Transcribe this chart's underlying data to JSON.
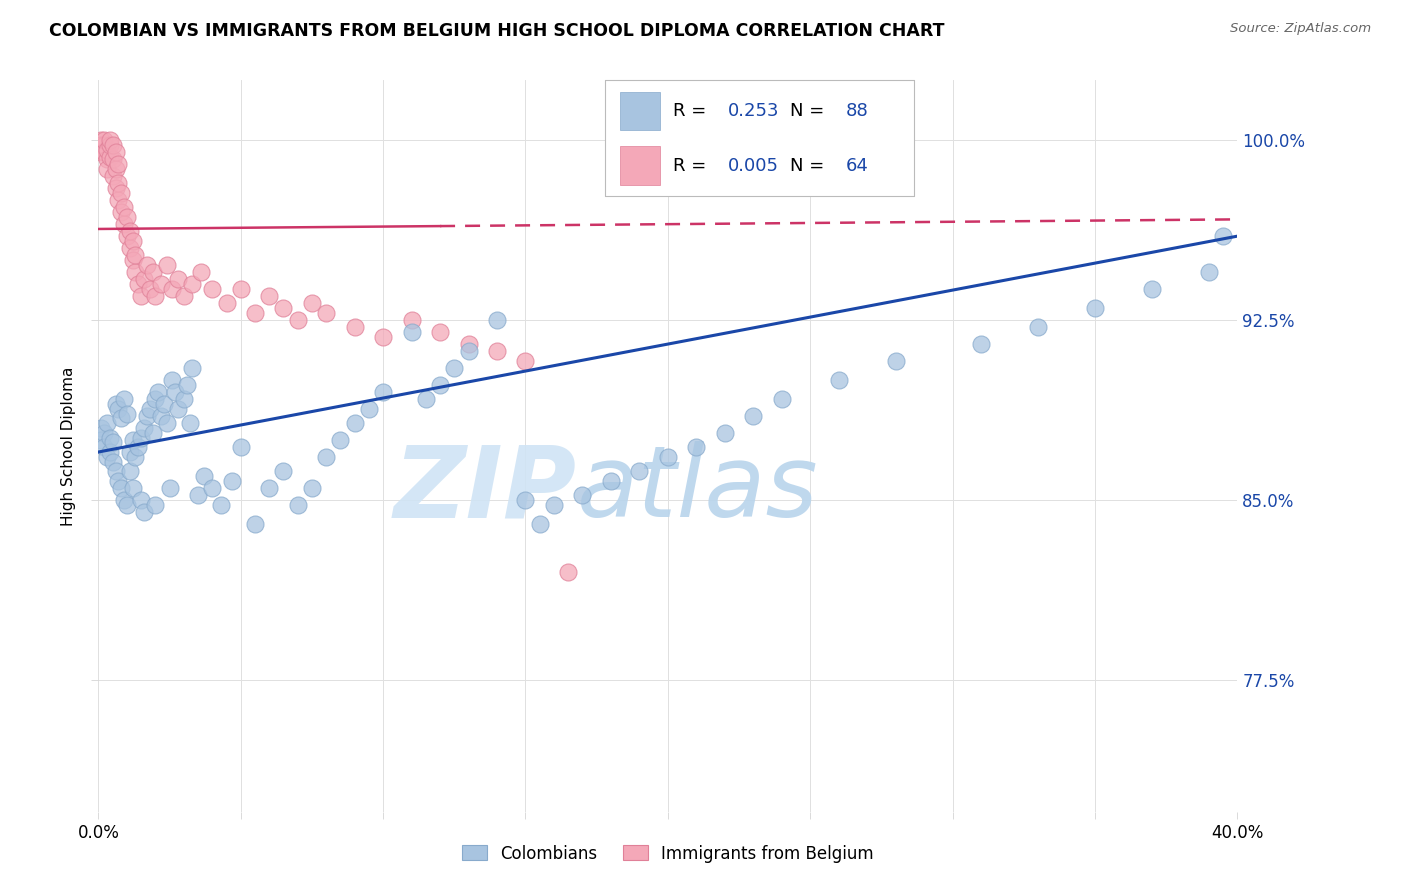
{
  "title": "COLOMBIAN VS IMMIGRANTS FROM BELGIUM HIGH SCHOOL DIPLOMA CORRELATION CHART",
  "source": "Source: ZipAtlas.com",
  "ylabel": "High School Diploma",
  "ytick_labels": [
    "77.5%",
    "85.0%",
    "92.5%",
    "100.0%"
  ],
  "ytick_values": [
    0.775,
    0.85,
    0.925,
    1.0
  ],
  "xmin": 0.0,
  "xmax": 0.4,
  "ymin": 0.72,
  "ymax": 1.025,
  "legend_R_blue": "0.253",
  "legend_N_blue": "88",
  "legend_R_pink": "0.005",
  "legend_N_pink": "64",
  "colombians_x": [
    0.001,
    0.001,
    0.002,
    0.002,
    0.003,
    0.003,
    0.004,
    0.004,
    0.005,
    0.005,
    0.006,
    0.006,
    0.007,
    0.007,
    0.008,
    0.008,
    0.009,
    0.009,
    0.01,
    0.01,
    0.011,
    0.011,
    0.012,
    0.012,
    0.013,
    0.014,
    0.015,
    0.015,
    0.016,
    0.016,
    0.017,
    0.018,
    0.019,
    0.02,
    0.02,
    0.021,
    0.022,
    0.023,
    0.024,
    0.025,
    0.026,
    0.027,
    0.028,
    0.03,
    0.031,
    0.032,
    0.033,
    0.035,
    0.037,
    0.04,
    0.043,
    0.047,
    0.05,
    0.055,
    0.06,
    0.065,
    0.07,
    0.075,
    0.08,
    0.085,
    0.09,
    0.095,
    0.1,
    0.11,
    0.115,
    0.12,
    0.125,
    0.13,
    0.14,
    0.15,
    0.155,
    0.16,
    0.17,
    0.18,
    0.19,
    0.2,
    0.21,
    0.22,
    0.23,
    0.24,
    0.26,
    0.28,
    0.31,
    0.33,
    0.35,
    0.37,
    0.39,
    0.395
  ],
  "colombians_y": [
    0.88,
    0.875,
    0.878,
    0.872,
    0.882,
    0.868,
    0.876,
    0.87,
    0.874,
    0.866,
    0.89,
    0.862,
    0.888,
    0.858,
    0.884,
    0.855,
    0.892,
    0.85,
    0.886,
    0.848,
    0.87,
    0.862,
    0.875,
    0.855,
    0.868,
    0.872,
    0.876,
    0.85,
    0.88,
    0.845,
    0.885,
    0.888,
    0.878,
    0.892,
    0.848,
    0.895,
    0.885,
    0.89,
    0.882,
    0.855,
    0.9,
    0.895,
    0.888,
    0.892,
    0.898,
    0.882,
    0.905,
    0.852,
    0.86,
    0.855,
    0.848,
    0.858,
    0.872,
    0.84,
    0.855,
    0.862,
    0.848,
    0.855,
    0.868,
    0.875,
    0.882,
    0.888,
    0.895,
    0.92,
    0.892,
    0.898,
    0.905,
    0.912,
    0.925,
    0.85,
    0.84,
    0.848,
    0.852,
    0.858,
    0.862,
    0.868,
    0.872,
    0.878,
    0.885,
    0.892,
    0.9,
    0.908,
    0.915,
    0.922,
    0.93,
    0.938,
    0.945,
    0.96
  ],
  "belgium_x": [
    0.001,
    0.001,
    0.001,
    0.002,
    0.002,
    0.002,
    0.003,
    0.003,
    0.003,
    0.004,
    0.004,
    0.004,
    0.005,
    0.005,
    0.005,
    0.006,
    0.006,
    0.006,
    0.007,
    0.007,
    0.007,
    0.008,
    0.008,
    0.009,
    0.009,
    0.01,
    0.01,
    0.011,
    0.011,
    0.012,
    0.012,
    0.013,
    0.013,
    0.014,
    0.015,
    0.016,
    0.017,
    0.018,
    0.019,
    0.02,
    0.022,
    0.024,
    0.026,
    0.028,
    0.03,
    0.033,
    0.036,
    0.04,
    0.045,
    0.05,
    0.055,
    0.06,
    0.065,
    0.07,
    0.075,
    0.08,
    0.09,
    0.1,
    0.11,
    0.12,
    0.13,
    0.14,
    0.15,
    0.165
  ],
  "belgium_y": [
    1.0,
    0.998,
    0.995,
    0.998,
    0.995,
    1.0,
    0.992,
    0.996,
    0.988,
    0.993,
    0.998,
    1.0,
    0.985,
    0.992,
    0.998,
    0.98,
    0.988,
    0.995,
    0.975,
    0.982,
    0.99,
    0.97,
    0.978,
    0.965,
    0.972,
    0.96,
    0.968,
    0.955,
    0.962,
    0.95,
    0.958,
    0.945,
    0.952,
    0.94,
    0.935,
    0.942,
    0.948,
    0.938,
    0.945,
    0.935,
    0.94,
    0.948,
    0.938,
    0.942,
    0.935,
    0.94,
    0.945,
    0.938,
    0.932,
    0.938,
    0.928,
    0.935,
    0.93,
    0.925,
    0.932,
    0.928,
    0.922,
    0.918,
    0.925,
    0.92,
    0.915,
    0.912,
    0.908,
    0.82
  ],
  "blue_color": "#a8c4e0",
  "blue_edge_color": "#88aacc",
  "blue_line_color": "#1a47a8",
  "pink_color": "#f4a8b8",
  "pink_edge_color": "#e08098",
  "pink_line_color": "#cc3366",
  "watermark_color": "#d0e4f5",
  "grid_color": "#e0e0e0",
  "blue_line_y0": 0.87,
  "blue_line_y1": 0.96,
  "pink_line_y0": 0.963,
  "pink_line_y1": 0.967
}
